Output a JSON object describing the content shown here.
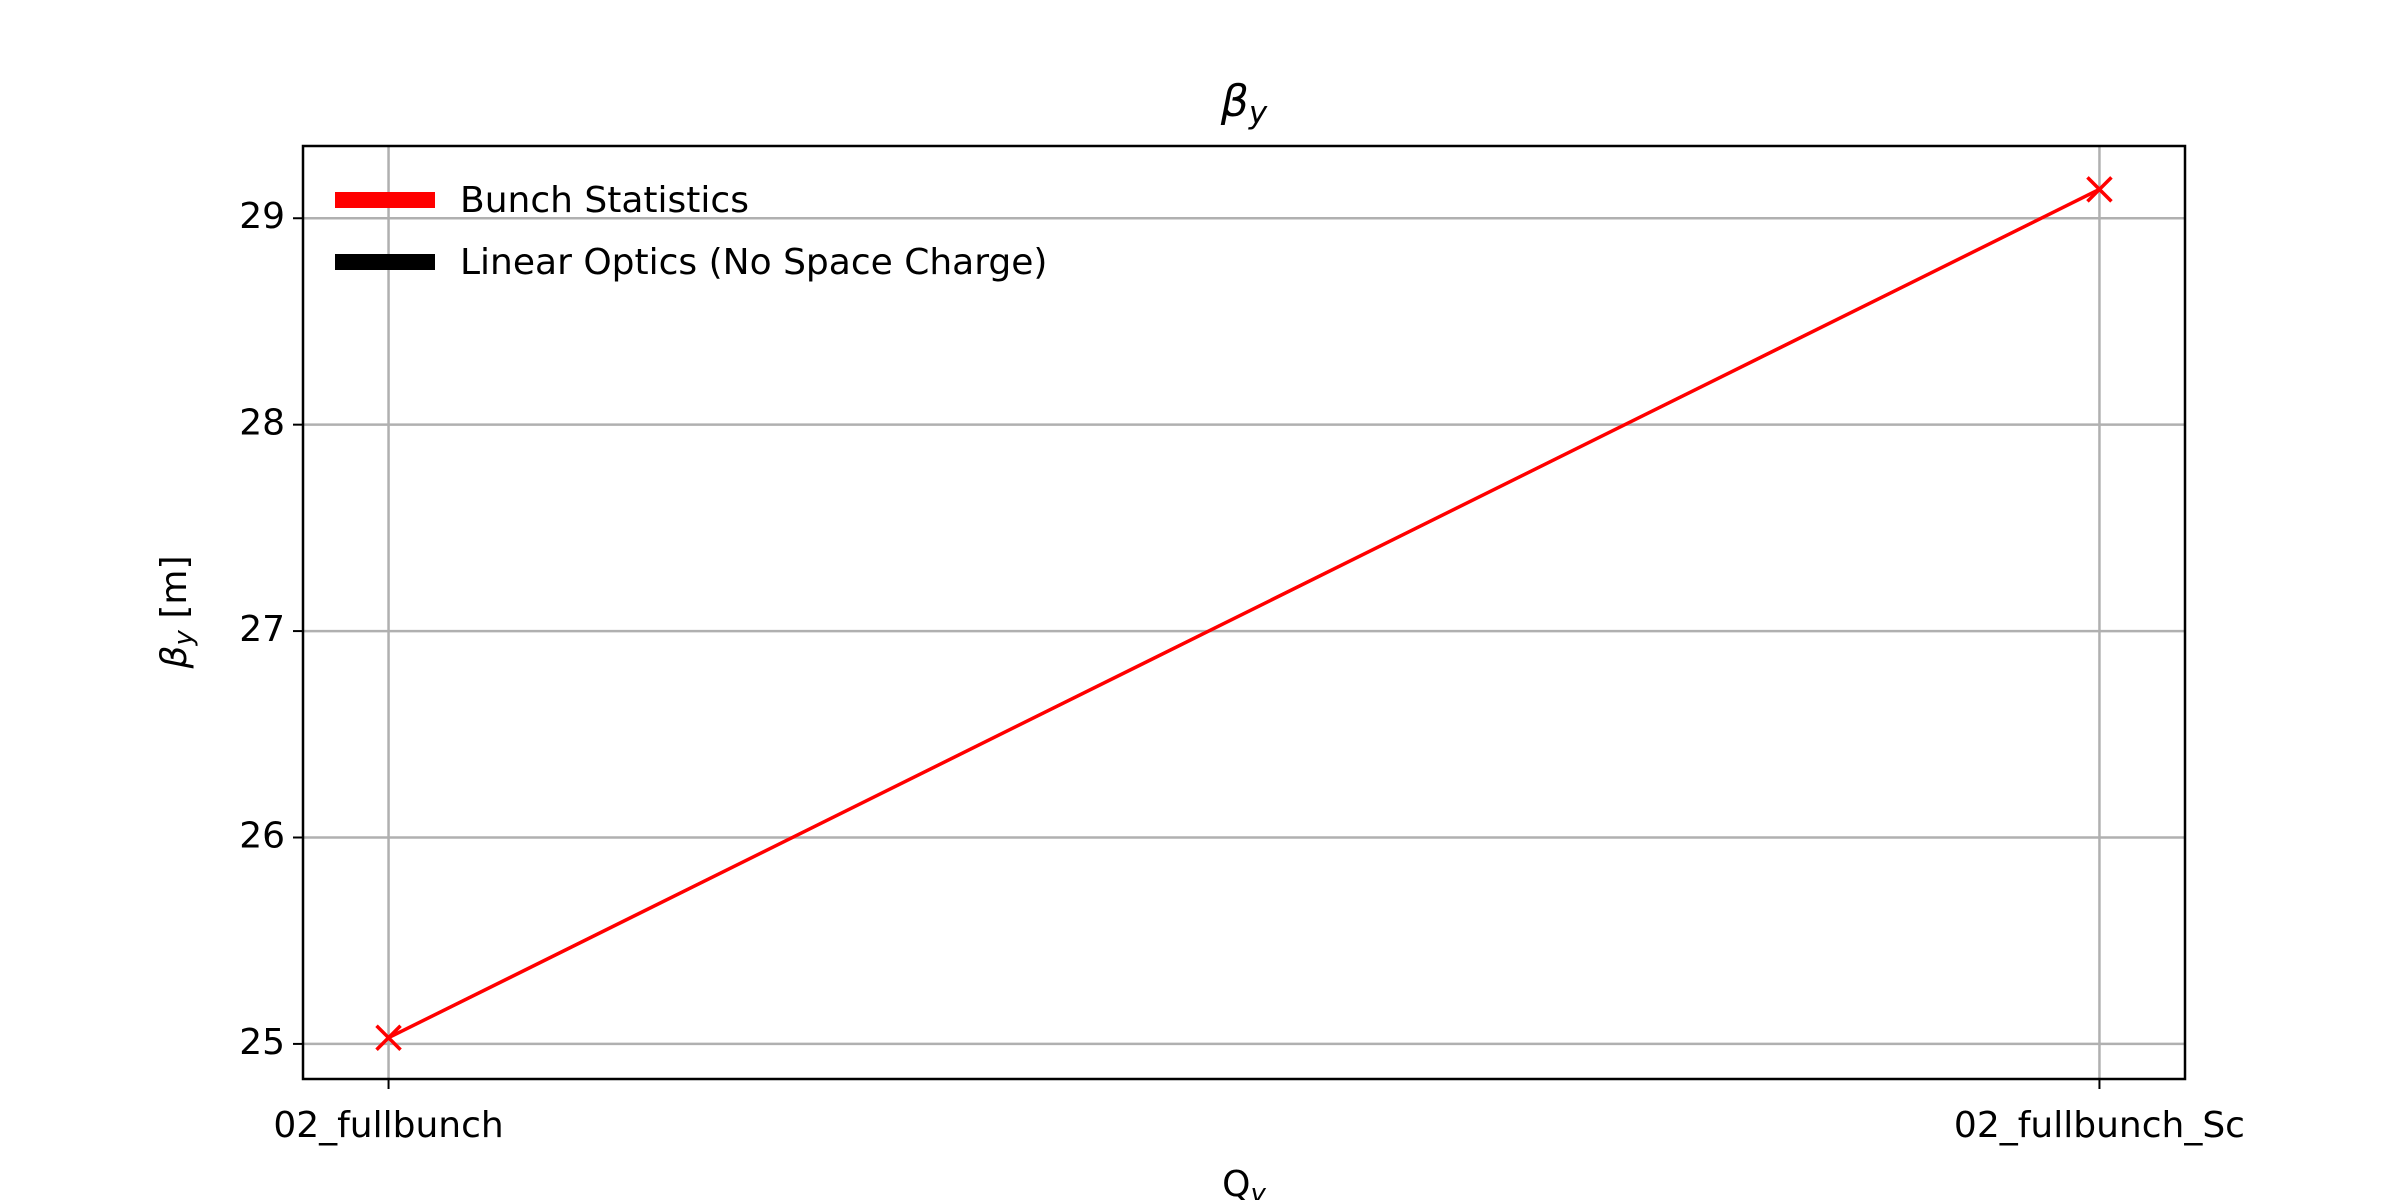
{
  "chart_data": {
    "type": "line",
    "title": {
      "symbol": "β",
      "subscript": "y"
    },
    "xlabel": {
      "symbol": "Q",
      "subscript": "y"
    },
    "ylabel": {
      "symbol": "β",
      "subscript": "y",
      "suffix": " [m]"
    },
    "categories": [
      "02_fullbunch",
      "02_fullbunch_Sc"
    ],
    "series": [
      {
        "name": "Bunch Statistics",
        "color": "#ff0000",
        "values": [
          25.03,
          29.14
        ]
      },
      {
        "name": "Linear Optics (No Space Charge)",
        "color": "#000000",
        "values": [
          null,
          null
        ]
      }
    ],
    "ylim": [
      24.83,
      29.35
    ],
    "yticks": [
      25,
      26,
      27,
      28,
      29
    ],
    "grid": true,
    "legend": "upper left",
    "marker": "x"
  }
}
